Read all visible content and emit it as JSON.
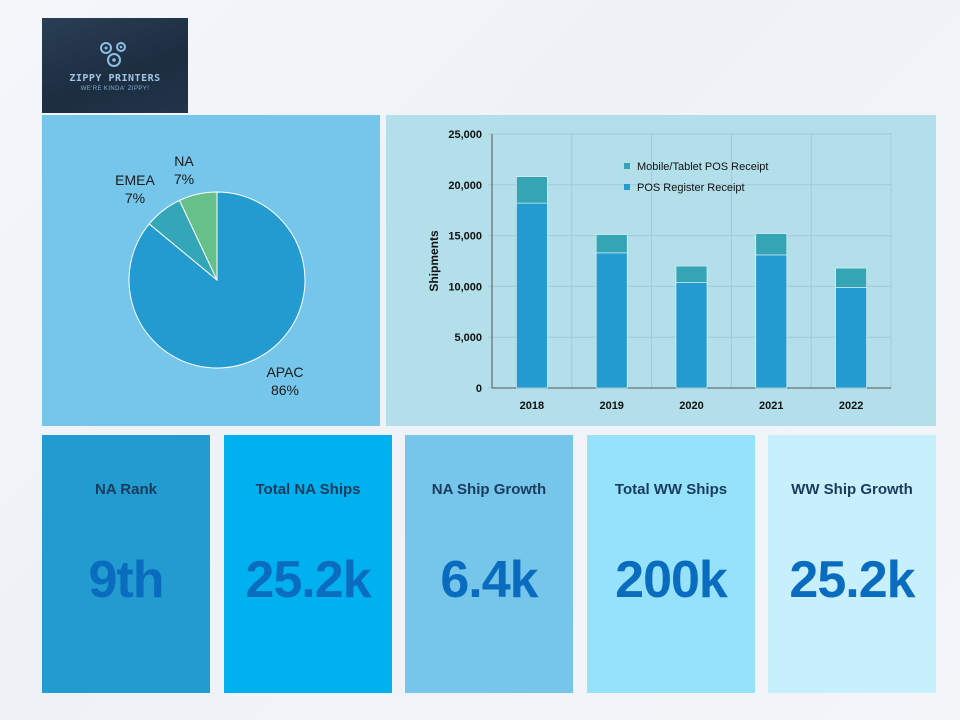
{
  "logo": {
    "name": "ZIPPY PRINTERS",
    "tagline": "WE'RE KINDA' ZIPPY!"
  },
  "chart_data": [
    {
      "type": "pie",
      "slices": [
        {
          "label": "APAC",
          "value": 86,
          "display": "86%",
          "color": "#249bd0"
        },
        {
          "label": "EMEA",
          "value": 7,
          "display": "7%",
          "color": "#33a6b7"
        },
        {
          "label": "NA",
          "value": 7,
          "display": "7%",
          "color": "#66c08a"
        }
      ]
    },
    {
      "type": "bar",
      "stacked": true,
      "categories": [
        "2018",
        "2019",
        "2020",
        "2021",
        "2022"
      ],
      "series": [
        {
          "name": "POS Register Receipt",
          "values": [
            18200,
            13300,
            10400,
            13100,
            9900
          ],
          "color": "#239bd0"
        },
        {
          "name": "Mobile/Tablet POS Receipt",
          "values": [
            2600,
            1800,
            1600,
            2100,
            1900
          ],
          "color": "#35a5b5"
        }
      ],
      "ylabel": "Shipments",
      "ylim": [
        0,
        25000
      ],
      "yticks": [
        0,
        5000,
        10000,
        15000,
        20000,
        25000
      ],
      "ytick_labels": [
        "0",
        "5,000",
        "10,000",
        "15,000",
        "20,000",
        "25,000"
      ],
      "grid": true,
      "legend_placement": "top-right",
      "legend_order": [
        "Mobile/Tablet POS Receipt",
        "POS Register Receipt"
      ]
    }
  ],
  "kpis": [
    {
      "title": "NA Rank",
      "value": "9th",
      "bg": "#229bd1"
    },
    {
      "title": "Total NA Ships",
      "value": "25.2k",
      "bg": "#00b0ef"
    },
    {
      "title": "NA Ship Growth",
      "value": "6.4k",
      "bg": "#75c6ea"
    },
    {
      "title": "Total WW Ships",
      "value": "200k",
      "bg": "#96e2fb"
    },
    {
      "title": "WW Ship Growth",
      "value": "25.2k",
      "bg": "#c8effc"
    }
  ]
}
